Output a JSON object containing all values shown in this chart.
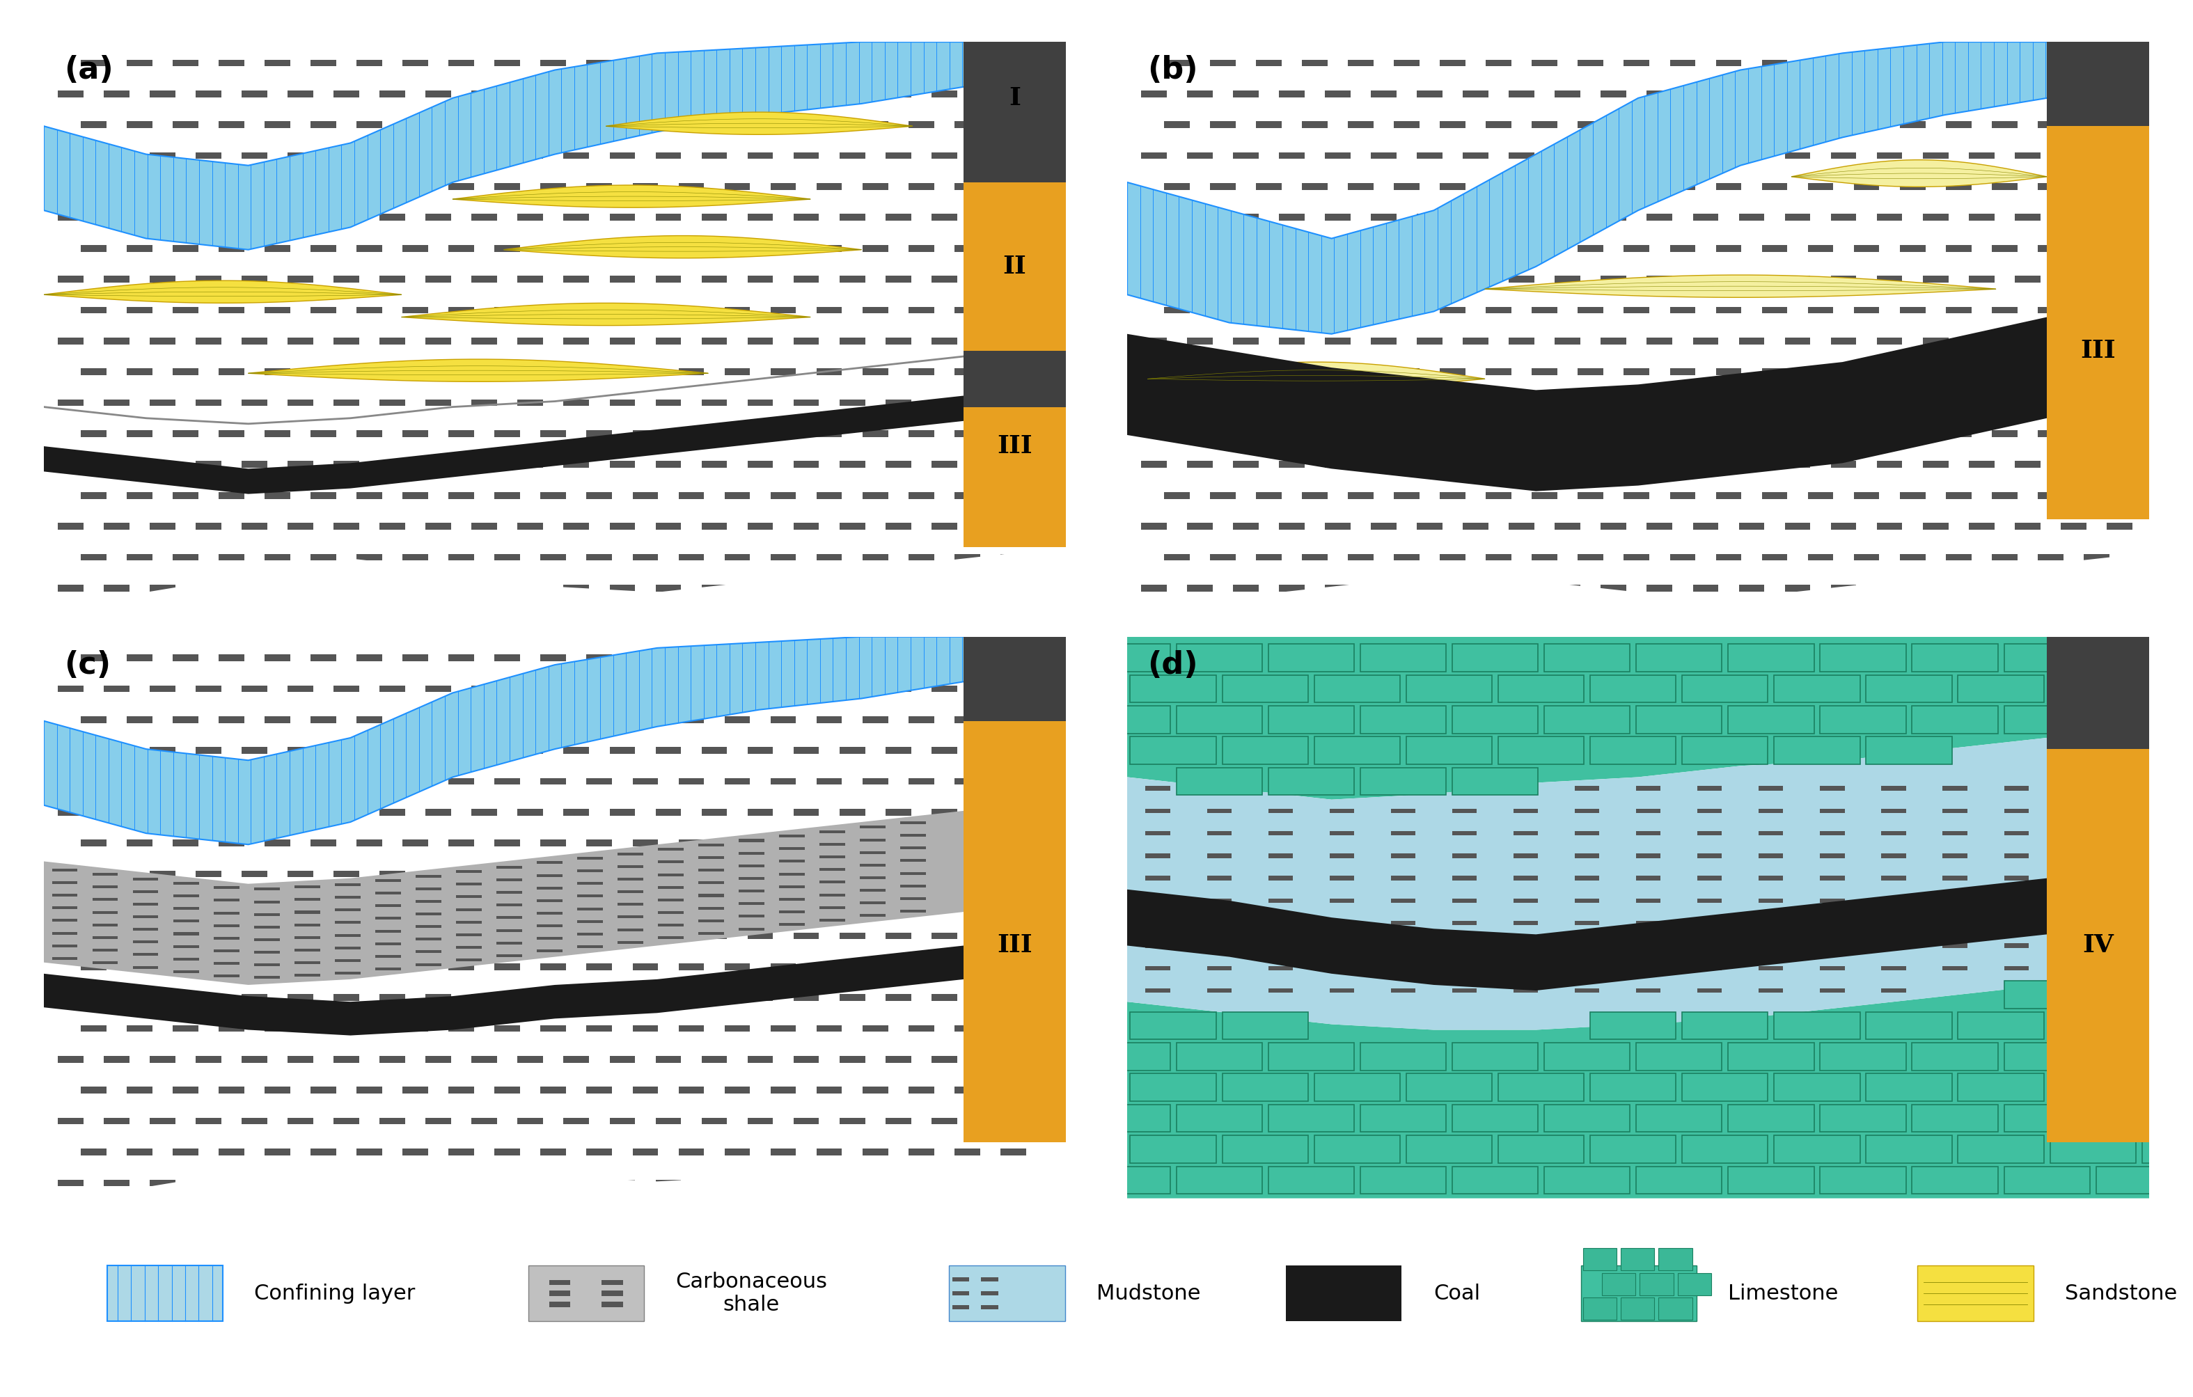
{
  "bg_color": "#ffffff",
  "confining_color": "#87CEEB",
  "confining_hatch_color": "#1E90FF",
  "mudstone_color": "#ADD8E6",
  "coal_color": "#1a1a1a",
  "sandstone_color": "#F5E642",
  "carbonaceous_color": "#b0b0b0",
  "limestone_color": "#40C0A0",
  "golden_color": "#E8A020",
  "dark_gray": "#404040",
  "panel_labels": [
    "(a)",
    "(b)",
    "(c)",
    "(d)"
  ],
  "roman_labels": [
    "I",
    "II",
    "III",
    "III",
    "III",
    "IV"
  ],
  "legend_items": [
    "Confining layer",
    "Carbonaceous\nshale",
    "Mudstone",
    "Coal",
    "Limestone",
    "Sandstone"
  ]
}
